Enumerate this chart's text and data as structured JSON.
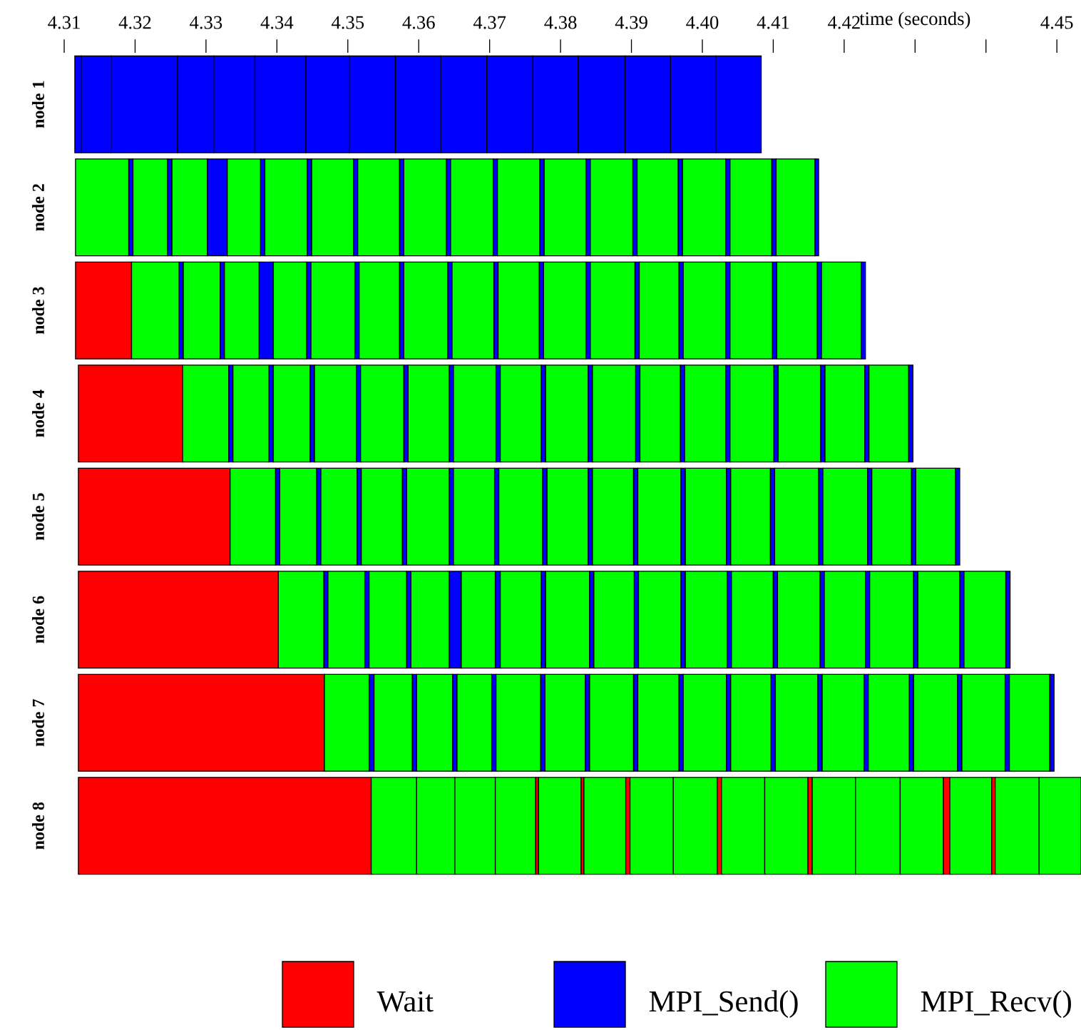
{
  "chart_data": {
    "type": "bar",
    "orientation": "horizontal",
    "legend": "bottom",
    "categories": [
      "node 1",
      "node 2",
      "node 3",
      "node 4",
      "node 5",
      "node 6",
      "node 7",
      "node 8"
    ],
    "xlim": [
      4.31,
      4.4534
    ],
    "xticks": [
      4.31,
      4.32,
      4.33,
      4.34,
      4.35,
      4.36,
      4.37,
      4.38,
      4.39,
      {
        "value": 4.4,
        "label": "4.40"
      },
      4.41,
      4.42,
      {
        "value": 4.43,
        "label": "time (seconds)"
      },
      {
        "value": 4.44,
        "label": null
      },
      4.45
    ],
    "series": [
      {
        "name": "Wait",
        "color": "#ff0000",
        "base": [
          null,
          null,
          4.3116,
          4.312,
          4.312,
          4.312,
          4.312,
          4.312
        ],
        "values": [
          null,
          null,
          0.0079,
          0.0147,
          0.0214,
          0.0282,
          0.0347,
          0.0413
        ]
      },
      {
        "name": "MPI_Send()",
        "color": "#0000ff",
        "base": [
          4.3115,
          4.3191,
          4.3262,
          4.3332,
          4.3398,
          4.3466,
          4.353,
          null
        ],
        "values": [
          0.0009,
          0.0006,
          0.0006,
          0.0006,
          0.0006,
          0.0006,
          0.0007,
          null
        ]
      },
      {
        "name": "MPI_Recv()",
        "color": "#00ff00",
        "base": [
          null,
          4.3116,
          4.3195,
          4.3267,
          4.3334,
          4.3402,
          4.3467,
          4.3533
        ],
        "values": [
          null,
          0.0075,
          0.0067,
          0.0065,
          0.0064,
          0.0064,
          0.0063,
          0.0064
        ]
      },
      {
        "base": [
          4.3124,
          null,
          null,
          null,
          null,
          null,
          null,
          null
        ],
        "values": [
          0.0042,
          null,
          null,
          null,
          null,
          null,
          null,
          null
        ],
        "colors": [
          "#0000ff",
          null,
          null,
          null,
          null,
          null,
          null,
          null
        ]
      },
      {
        "base": [
          4.3166,
          4.3197,
          null,
          null,
          null,
          null,
          null,
          4.3597
        ],
        "values": [
          0.0094,
          0.0049,
          null,
          null,
          null,
          null,
          null,
          0.0054
        ],
        "colors": [
          "#0000ff",
          "#00ff00",
          null,
          null,
          null,
          null,
          null,
          "#00ff00"
        ]
      },
      {
        "base": [
          4.326,
          4.3246,
          4.3268,
          4.3338,
          4.3404,
          4.3472,
          4.3537,
          4.3651
        ],
        "values": [
          0.0051,
          0.0006,
          0.0052,
          0.0051,
          0.0052,
          0.0052,
          0.0054,
          0.0057
        ],
        "colors": [
          "#0000ff",
          "#0000ff",
          "#00ff00",
          "#00ff00",
          "#00ff00",
          "#00ff00",
          "#00ff00",
          "#00ff00"
        ]
      },
      {
        "base": [
          4.3311,
          4.3252,
          4.332,
          4.3389,
          4.3456,
          4.3524,
          4.3591,
          4.3708
        ],
        "values": [
          0.0058,
          0.005,
          0.0006,
          0.0006,
          0.0006,
          0.0006,
          0.0006,
          0.0057
        ],
        "colors": [
          "#0000ff",
          "#00ff00",
          "#0000ff",
          "#0000ff",
          "#0000ff",
          "#0000ff",
          "#0000ff",
          "#00ff00"
        ]
      },
      {
        "base": [
          4.3369,
          4.3302,
          4.3326,
          4.3395,
          4.3462,
          4.353,
          4.3597,
          4.3765
        ],
        "values": [
          0.0072,
          0.0028,
          0.0049,
          0.0052,
          0.0051,
          0.0053,
          0.0051,
          0.0004
        ],
        "colors": [
          "#0000ff",
          "#0000ff",
          "#00ff00",
          "#00ff00",
          "#00ff00",
          "#00ff00",
          "#00ff00",
          "#ff0000"
        ]
      },
      {
        "base": [
          4.3441,
          4.333,
          4.3375,
          4.3447,
          4.3513,
          4.3583,
          4.3648,
          4.3769
        ],
        "values": [
          0.0061,
          0.0047,
          0.002,
          0.0006,
          0.0006,
          0.0006,
          0.0006,
          0.006
        ],
        "colors": [
          "#0000ff",
          "#00ff00",
          "#0000ff",
          "#0000ff",
          "#0000ff",
          "#0000ff",
          "#0000ff",
          "#00ff00"
        ]
      },
      {
        "base": [
          4.3502,
          4.3377,
          4.3395,
          4.3453,
          4.3519,
          4.3589,
          4.3654,
          4.3829
        ],
        "values": [
          0.0065,
          0.0006,
          0.0047,
          0.0059,
          0.0058,
          0.0054,
          0.0049,
          0.0004
        ],
        "colors": [
          "#0000ff",
          "#0000ff",
          "#00ff00",
          "#00ff00",
          "#00ff00",
          "#00ff00",
          "#00ff00",
          "#ff0000"
        ]
      },
      {
        "base": [
          4.3567,
          4.3383,
          4.3442,
          4.3512,
          4.3577,
          4.3643,
          4.3703,
          4.3833
        ],
        "values": [
          0.0064,
          0.006,
          0.0006,
          0.0006,
          0.0006,
          0.0017,
          0.0006,
          0.0059
        ],
        "colors": [
          "#0000ff",
          "#00ff00",
          "#0000ff",
          "#0000ff",
          "#0000ff",
          "#0000ff",
          "#0000ff",
          "#00ff00"
        ]
      },
      {
        "base": [
          4.3631,
          4.3443,
          4.3448,
          4.3518,
          4.3583,
          4.366,
          4.3709,
          4.3892
        ],
        "values": [
          0.0065,
          0.0006,
          0.0062,
          0.0061,
          0.006,
          0.0048,
          0.0063,
          0.0006
        ],
        "colors": [
          "#0000ff",
          "#0000ff",
          "#00ff00",
          "#00ff00",
          "#00ff00",
          "#00ff00",
          "#00ff00",
          "#ff0000"
        ]
      },
      {
        "base": [
          4.3696,
          4.3449,
          4.351,
          4.3579,
          4.3643,
          4.3708,
          4.3772,
          4.3898
        ],
        "values": [
          0.0065,
          0.0059,
          0.0006,
          0.0006,
          0.0006,
          0.0007,
          0.0006,
          0.0061
        ],
        "colors": [
          "#0000ff",
          "#00ff00",
          "#0000ff",
          "#0000ff",
          "#0000ff",
          "#0000ff",
          "#0000ff",
          "#00ff00"
        ]
      },
      {
        "base": [
          4.3761,
          4.3508,
          4.3516,
          4.3585,
          4.3649,
          4.3715,
          4.3778,
          4.3959
        ],
        "values": [
          0.0064,
          0.0006,
          0.0057,
          0.0058,
          0.0058,
          0.0058,
          0.0057,
          0.0062
        ],
        "colors": [
          "#0000ff",
          "#0000ff",
          "#00ff00",
          "#00ff00",
          "#00ff00",
          "#00ff00",
          "#00ff00",
          "#00ff00"
        ]
      },
      {
        "base": [
          4.3825,
          4.3514,
          4.3573,
          4.3643,
          4.3707,
          4.3773,
          4.3835,
          4.4021
        ],
        "values": [
          0.0066,
          0.0059,
          0.0006,
          0.0006,
          0.0006,
          0.0006,
          0.0006,
          0.0006
        ],
        "colors": [
          "#0000ff",
          "#00ff00",
          "#0000ff",
          "#0000ff",
          "#0000ff",
          "#0000ff",
          "#0000ff",
          "#ff0000"
        ]
      },
      {
        "base": [
          4.3891,
          4.3573,
          4.3579,
          4.3649,
          4.3713,
          4.3779,
          4.3841,
          4.4027
        ],
        "values": [
          0.0064,
          0.0006,
          0.0062,
          0.006,
          0.0062,
          0.0062,
          0.0062,
          0.0061
        ],
        "colors": [
          "#0000ff",
          "#0000ff",
          "#00ff00",
          "#00ff00",
          "#00ff00",
          "#00ff00",
          "#00ff00",
          "#00ff00"
        ]
      },
      {
        "base": [
          4.3955,
          4.3579,
          4.3641,
          4.3709,
          4.3775,
          4.3841,
          4.3903,
          4.4088
        ],
        "values": [
          0.0064,
          0.006,
          0.0006,
          0.0006,
          0.0006,
          0.0006,
          0.0006,
          0.0061
        ],
        "colors": [
          "#0000ff",
          "#00ff00",
          "#0000ff",
          "#0000ff",
          "#0000ff",
          "#0000ff",
          "#0000ff",
          "#00ff00"
        ]
      },
      {
        "base": [
          4.4019,
          4.3639,
          4.3647,
          4.3715,
          4.3781,
          4.3847,
          4.3909,
          4.4149
        ],
        "values": [
          0.0064,
          0.0006,
          0.0059,
          0.0058,
          0.0058,
          0.0057,
          0.0058,
          0.0006
        ],
        "colors": [
          "#0000ff",
          "#0000ff",
          "#00ff00",
          "#00ff00",
          "#00ff00",
          "#00ff00",
          "#00ff00",
          "#ff0000"
        ]
      },
      {
        "base": [
          null,
          4.3645,
          4.3706,
          4.3773,
          4.3839,
          4.3904,
          4.3967,
          4.4155
        ],
        "values": [
          null,
          0.006,
          0.0006,
          0.0006,
          0.0006,
          0.0006,
          0.0006,
          0.0061
        ],
        "colors": [
          null,
          "#00ff00",
          "#0000ff",
          "#0000ff",
          "#0000ff",
          "#0000ff",
          "#0000ff",
          "#00ff00"
        ]
      },
      {
        "base": [
          null,
          4.3705,
          4.3712,
          4.3779,
          4.3845,
          4.391,
          4.3973,
          4.4216
        ],
        "values": [
          null,
          0.0006,
          0.0058,
          0.006,
          0.0058,
          0.006,
          0.0061,
          0.0063
        ],
        "colors": [
          null,
          "#0000ff",
          "#00ff00",
          "#00ff00",
          "#00ff00",
          "#00ff00",
          "#00ff00",
          "#00ff00"
        ]
      },
      {
        "base": [
          null,
          4.3711,
          4.377,
          4.3839,
          4.3903,
          4.397,
          4.4034,
          4.4279
        ],
        "values": [
          null,
          0.006,
          0.0006,
          0.0006,
          0.0006,
          0.0006,
          0.0006,
          0.0061
        ],
        "colors": [
          null,
          "#00ff00",
          "#0000ff",
          "#0000ff",
          "#0000ff",
          "#0000ff",
          "#0000ff",
          "#00ff00"
        ]
      },
      {
        "base": [
          null,
          4.3771,
          4.3776,
          4.3845,
          4.3909,
          4.3976,
          4.404,
          4.434
        ],
        "values": [
          null,
          0.0006,
          0.006,
          0.0061,
          0.0061,
          0.0059,
          0.0057,
          0.0009
        ],
        "colors": [
          null,
          "#0000ff",
          "#00ff00",
          "#00ff00",
          "#00ff00",
          "#00ff00",
          "#00ff00",
          "#ff0000"
        ]
      },
      {
        "base": [
          null,
          4.3777,
          4.3836,
          4.3906,
          4.397,
          4.4035,
          4.4097,
          4.4349
        ],
        "values": [
          null,
          0.0059,
          0.0006,
          0.0006,
          0.0006,
          0.0006,
          0.0006,
          0.0059
        ],
        "colors": [
          null,
          "#00ff00",
          "#0000ff",
          "#0000ff",
          "#0000ff",
          "#0000ff",
          "#0000ff",
          "#00ff00"
        ]
      },
      {
        "base": [
          null,
          4.3836,
          4.3842,
          4.3912,
          4.3976,
          4.4041,
          4.4103,
          4.4408
        ],
        "values": [
          null,
          0.0006,
          0.0063,
          0.0057,
          0.0058,
          0.0059,
          0.006,
          0.0005
        ],
        "colors": [
          null,
          "#0000ff",
          "#00ff00",
          "#00ff00",
          "#00ff00",
          "#00ff00",
          "#00ff00",
          "#ff0000"
        ]
      },
      {
        "base": [
          null,
          4.3842,
          4.3905,
          4.3969,
          4.4034,
          4.41,
          4.4163,
          4.4413
        ],
        "values": [
          null,
          0.006,
          0.0006,
          0.0006,
          0.0006,
          0.0006,
          0.0006,
          0.0062
        ],
        "colors": [
          null,
          "#00ff00",
          "#0000ff",
          "#0000ff",
          "#0000ff",
          "#0000ff",
          "#0000ff",
          "#00ff00"
        ]
      },
      {
        "base": [
          null,
          4.3902,
          4.3911,
          4.3975,
          4.404,
          4.4106,
          4.4169,
          4.4475
        ],
        "values": [
          null,
          0.0006,
          0.0056,
          0.0058,
          0.0056,
          0.006,
          0.0059,
          0.0059
        ],
        "colors": [
          null,
          "#0000ff",
          "#00ff00",
          "#00ff00",
          "#00ff00",
          "#00ff00",
          "#00ff00",
          "#00ff00"
        ]
      },
      {
        "base": [
          null,
          4.3908,
          4.3967,
          4.4033,
          4.4096,
          4.4166,
          4.4228,
          null
        ],
        "values": [
          null,
          0.0058,
          0.0006,
          0.0006,
          0.0006,
          0.0006,
          0.0006,
          null
        ],
        "colors": [
          null,
          "#00ff00",
          "#0000ff",
          "#0000ff",
          "#0000ff",
          "#0000ff",
          "#0000ff",
          null
        ]
      },
      {
        "base": [
          null,
          4.3966,
          4.3973,
          4.4039,
          4.4102,
          4.4172,
          4.4234,
          null
        ],
        "values": [
          null,
          0.0006,
          0.006,
          0.0062,
          0.0062,
          0.0058,
          0.0058,
          null
        ],
        "colors": [
          null,
          "#0000ff",
          "#00ff00",
          "#00ff00",
          "#00ff00",
          "#00ff00",
          "#00ff00",
          null
        ]
      },
      {
        "base": [
          null,
          4.3972,
          4.4033,
          4.4101,
          4.4164,
          4.423,
          4.4292,
          null
        ],
        "values": [
          null,
          0.0061,
          0.0006,
          0.0006,
          0.0006,
          0.0006,
          0.0006,
          null
        ],
        "colors": [
          null,
          "#00ff00",
          "#0000ff",
          "#0000ff",
          "#0000ff",
          "#0000ff",
          "#0000ff",
          null
        ]
      },
      {
        "base": [
          null,
          4.4033,
          4.4039,
          4.4107,
          4.417,
          4.4236,
          4.4298,
          null
        ],
        "values": [
          null,
          0.0006,
          0.006,
          0.006,
          0.0063,
          0.0062,
          0.0062,
          null
        ],
        "colors": [
          null,
          "#0000ff",
          "#00ff00",
          "#00ff00",
          "#00ff00",
          "#00ff00",
          "#00ff00",
          null
        ]
      },
      {
        "base": [
          null,
          4.4039,
          4.4099,
          4.4167,
          4.4233,
          4.4298,
          4.436,
          null
        ],
        "values": [
          null,
          0.0059,
          0.0006,
          0.0006,
          0.0006,
          0.0006,
          0.0006,
          null
        ],
        "colors": [
          null,
          "#00ff00",
          "#0000ff",
          "#0000ff",
          "#0000ff",
          "#0000ff",
          "#0000ff",
          null
        ]
      },
      {
        "base": [
          null,
          4.4098,
          4.4105,
          4.4173,
          4.4239,
          4.4304,
          4.4366,
          null
        ],
        "values": [
          null,
          0.0006,
          0.0057,
          0.0056,
          0.0056,
          0.0059,
          0.0061,
          null
        ],
        "colors": [
          null,
          "#0000ff",
          "#00ff00",
          "#00ff00",
          "#00ff00",
          "#00ff00",
          "#00ff00",
          null
        ]
      },
      {
        "base": [
          null,
          4.4104,
          4.4162,
          4.4229,
          4.4295,
          4.4363,
          4.4427,
          null
        ],
        "values": [
          null,
          0.0055,
          0.0006,
          0.0006,
          0.0006,
          0.0006,
          0.0006,
          null
        ],
        "colors": [
          null,
          "#00ff00",
          "#0000ff",
          "#0000ff",
          "#0000ff",
          "#0000ff",
          "#0000ff",
          null
        ]
      },
      {
        "base": [
          null,
          4.4159,
          4.4168,
          4.4235,
          4.4301,
          4.4369,
          4.4433,
          null
        ],
        "values": [
          null,
          0.0005,
          0.0056,
          0.0056,
          0.0056,
          0.0059,
          0.0057,
          null
        ],
        "colors": [
          null,
          "#0000ff",
          "#00ff00",
          "#00ff00",
          "#00ff00",
          "#00ff00",
          "#00ff00",
          null
        ]
      },
      {
        "base": [
          null,
          null,
          4.4224,
          4.4291,
          4.4357,
          4.4428,
          4.449,
          null
        ],
        "values": [
          null,
          null,
          0.0006,
          0.0006,
          0.0006,
          0.0006,
          0.0006,
          null
        ],
        "colors": [
          null,
          null,
          "#0000ff",
          "#0000ff",
          "#0000ff",
          "#0000ff",
          "#0000ff",
          null
        ]
      }
    ]
  }
}
